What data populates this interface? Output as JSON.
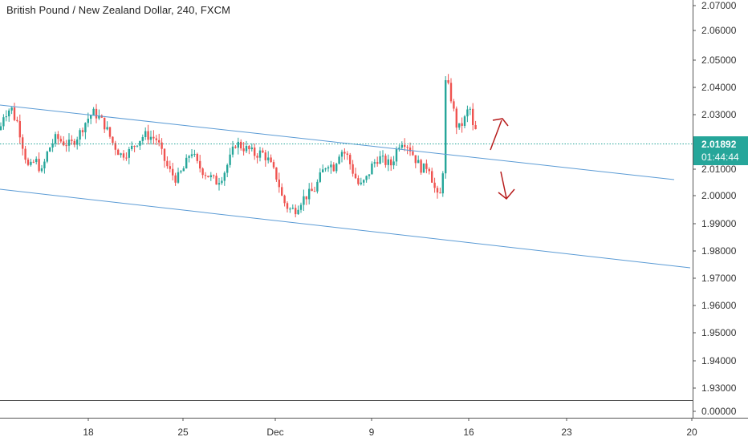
{
  "chart_data": {
    "type": "candlestick",
    "title": "British Pound / New Zealand Dollar, 240, FXCM",
    "ylim": [
      1.924,
      2.075
    ],
    "y_ticks": [
      "2.07000",
      "2.06000",
      "2.05000",
      "2.04000",
      "2.03000",
      "2.02000",
      "2.01000",
      "2.00000",
      "1.99000",
      "1.98000",
      "1.97000",
      "1.96000",
      "1.95000",
      "1.94000",
      "1.93000"
    ],
    "x_ticks": [
      "18",
      "25",
      "Dec",
      "9",
      "16",
      "23",
      "20"
    ],
    "last_price": "2.01892",
    "countdown": "01:44:44",
    "volume_pane_label": "0.00000",
    "colors": {
      "up": "#26a69a",
      "down": "#ef5350",
      "channel": "#5b9bd5",
      "price_line": "#26a69a",
      "arrows": "#b71c1c"
    },
    "channel_lines": [
      {
        "name": "upper",
        "points": [
          [
            "Nov 14",
            2.034
          ],
          [
            "Dec 19",
            2.0055
          ]
        ]
      },
      {
        "name": "lower",
        "points": [
          [
            "Nov 14",
            2.002
          ],
          [
            "Dec 23",
            1.9733
          ]
        ]
      }
    ],
    "annotations": [
      "arrow-up",
      "arrow-down"
    ]
  }
}
